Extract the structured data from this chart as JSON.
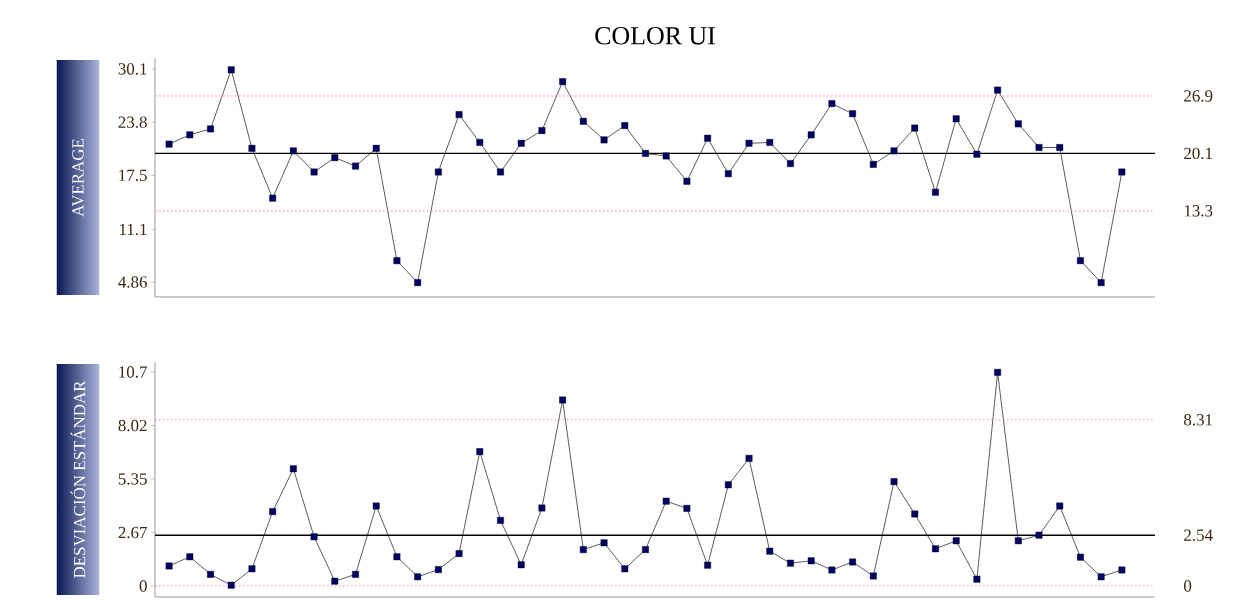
{
  "chart_data": [
    {
      "type": "line",
      "title": "COLOR UI",
      "ylabel": "AVERAGE",
      "marker": "square",
      "tick_labels": "y",
      "categories": [
        null,
        null,
        null,
        null,
        null,
        null,
        null,
        null,
        null,
        null,
        null,
        null,
        null,
        null,
        null,
        null,
        null,
        null,
        null,
        null,
        null,
        null,
        null,
        null,
        null,
        null,
        null,
        null,
        null,
        null,
        null,
        null,
        null,
        null,
        null,
        null,
        null,
        null,
        null,
        null,
        null,
        null,
        null,
        null,
        null,
        null,
        null
      ],
      "series": [
        {
          "color": "#000066",
          "values": [
            21.2,
            22.3,
            23.0,
            30.0,
            20.7,
            14.8,
            20.4,
            17.9,
            19.6,
            18.6,
            20.7,
            7.4,
            4.8,
            17.9,
            24.7,
            21.4,
            17.9,
            21.3,
            22.8,
            28.6,
            23.9,
            21.7,
            23.4,
            20.1,
            19.8,
            16.8,
            21.9,
            17.7,
            21.3,
            21.4,
            18.9,
            22.3,
            26.0,
            24.8,
            18.8,
            20.4,
            23.1,
            15.5,
            24.2,
            20.0,
            27.6,
            23.6,
            20.8,
            20.8,
            7.4,
            4.8,
            17.9
          ]
        }
      ],
      "ylim": [
        3.1,
        31.4
      ],
      "yticks": [
        30.1,
        23.8,
        17.5,
        11.1,
        4.86
      ],
      "ref_lines": [
        {
          "axis": "y",
          "value": 26.9,
          "label": "26.9",
          "color": "#ff6666",
          "line_style": "dotted"
        },
        {
          "axis": "y",
          "value": 20.1,
          "label": "20.1",
          "color": "#000000",
          "line_style": "solid"
        },
        {
          "axis": "y",
          "value": 13.3,
          "label": "13.3",
          "color": "#ff6666",
          "line_style": "dotted"
        }
      ]
    },
    {
      "type": "line",
      "ylabel": "DESVIACIÓN ESTÁNDAR",
      "marker": "square",
      "tick_labels": "y",
      "categories": [
        null,
        null,
        null,
        null,
        null,
        null,
        null,
        null,
        null,
        null,
        null,
        null,
        null,
        null,
        null,
        null,
        null,
        null,
        null,
        null,
        null,
        null,
        null,
        null,
        null,
        null,
        null,
        null,
        null,
        null,
        null,
        null,
        null,
        null,
        null,
        null,
        null,
        null,
        null,
        null,
        null,
        null,
        null,
        null,
        null,
        null,
        null
      ],
      "series": [
        {
          "color": "#000066",
          "values": [
            1.0,
            1.46,
            0.58,
            0.04,
            0.86,
            3.72,
            5.86,
            2.46,
            0.24,
            0.58,
            4.0,
            1.46,
            0.46,
            0.82,
            1.62,
            6.72,
            3.28,
            1.06,
            3.9,
            9.3,
            1.82,
            2.16,
            0.86,
            1.82,
            4.24,
            3.88,
            1.04,
            5.06,
            6.38,
            1.74,
            1.14,
            1.26,
            0.8,
            1.2,
            0.5,
            5.22,
            3.6,
            1.86,
            2.26,
            0.34,
            10.68,
            2.26,
            2.54,
            4.0,
            1.44,
            0.46,
            0.8
          ]
        }
      ],
      "ylim": [
        -0.55,
        11.2
      ],
      "yticks": [
        10.7,
        8.02,
        5.35,
        2.67,
        0
      ],
      "ref_lines": [
        {
          "axis": "y",
          "value": 8.31,
          "label": "8.31",
          "color": "#ff6666",
          "line_style": "dotted"
        },
        {
          "axis": "y",
          "value": 2.54,
          "label": "2.54",
          "color": "#000000",
          "line_style": "solid"
        },
        {
          "axis": "y",
          "value": 0,
          "label": "0",
          "color": "#ff6666",
          "line_style": "dotted"
        }
      ]
    }
  ]
}
